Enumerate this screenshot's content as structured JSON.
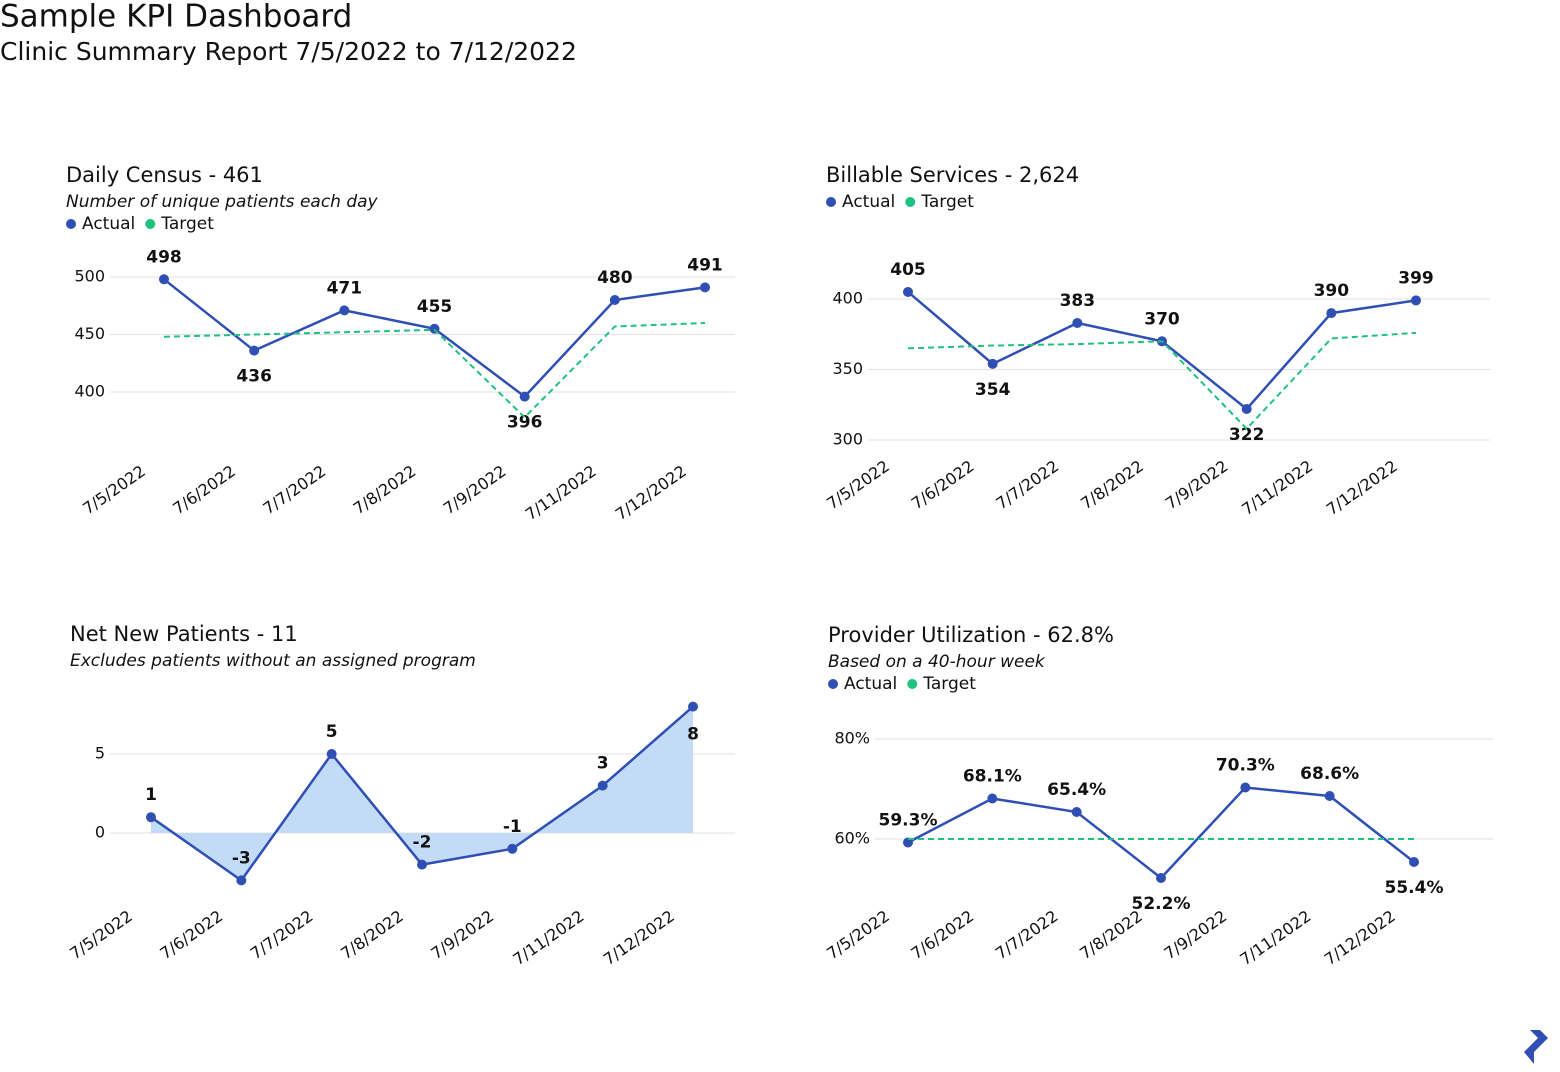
{
  "header": {
    "title": "Sample KPI Dashboard",
    "subtitle": "Clinic Summary Report 7/5/2022 to 7/12/2022"
  },
  "chart_data": [
    {
      "type": "line",
      "title": "Daily Census - 461",
      "subtitle": "Number of unique patients each day",
      "categories": [
        "7/5/2022",
        "7/6/2022",
        "7/7/2022",
        "7/8/2022",
        "7/9/2022",
        "7/11/2022",
        "7/12/2022"
      ],
      "series": [
        {
          "name": "Actual",
          "color": "#2f4fb5",
          "values": [
            498,
            436,
            471,
            455,
            396,
            480,
            491
          ]
        },
        {
          "name": "Target",
          "color": "#1ec27f",
          "values": [
            448,
            450,
            452,
            454,
            378,
            457,
            460
          ]
        }
      ],
      "ylim": [
        370,
        510
      ],
      "yticks": [
        400,
        450,
        500
      ],
      "grid": true
    },
    {
      "type": "line",
      "title": "Billable Services - 2,624",
      "categories": [
        "7/5/2022",
        "7/6/2022",
        "7/7/2022",
        "7/8/2022",
        "7/9/2022",
        "7/11/2022",
        "7/12/2022"
      ],
      "series": [
        {
          "name": "Actual",
          "color": "#2f4fb5",
          "values": [
            405,
            354,
            383,
            370,
            322,
            390,
            399
          ]
        },
        {
          "name": "Target",
          "color": "#1ec27f",
          "values": [
            365,
            367,
            368,
            370,
            308,
            372,
            376
          ]
        }
      ],
      "ylim": [
        300,
        430
      ],
      "yticks": [
        300,
        350,
        400
      ],
      "grid": true
    },
    {
      "type": "area",
      "title": "Net New Patients - 11",
      "subtitle": "Excludes patients without an assigned program",
      "categories": [
        "7/5/2022",
        "7/6/2022",
        "7/7/2022",
        "7/8/2022",
        "7/9/2022",
        "7/11/2022",
        "7/12/2022"
      ],
      "values": [
        1,
        -3,
        5,
        -2,
        -1,
        3,
        8
      ],
      "color": "#2f4fb5",
      "fill": "#c3dbf7",
      "ylim": [
        -4,
        9
      ],
      "yticks": [
        0,
        5
      ],
      "grid": true
    },
    {
      "type": "line",
      "title": "Provider Utilization - 62.8%",
      "subtitle": "Based on a 40-hour week",
      "categories": [
        "7/5/2022",
        "7/6/2022",
        "7/7/2022",
        "7/8/2022",
        "7/9/2022",
        "7/11/2022",
        "7/12/2022"
      ],
      "series": [
        {
          "name": "Actual",
          "color": "#2f4fb5",
          "values": [
            59.3,
            68.1,
            65.4,
            52.2,
            70.3,
            68.6,
            55.4
          ],
          "value_labels": [
            "59.3%",
            "68.1%",
            "65.4%",
            "52.2%",
            "70.3%",
            "68.6%",
            "55.4%"
          ]
        },
        {
          "name": "Target",
          "color": "#1ec27f",
          "values": [
            60,
            60,
            60,
            60,
            60,
            60,
            60
          ]
        }
      ],
      "ylim": [
        50,
        80
      ],
      "yticks": [
        {
          "value": 60,
          "label": "60%"
        },
        {
          "value": 80,
          "label": "80%"
        }
      ],
      "grid": true
    }
  ]
}
